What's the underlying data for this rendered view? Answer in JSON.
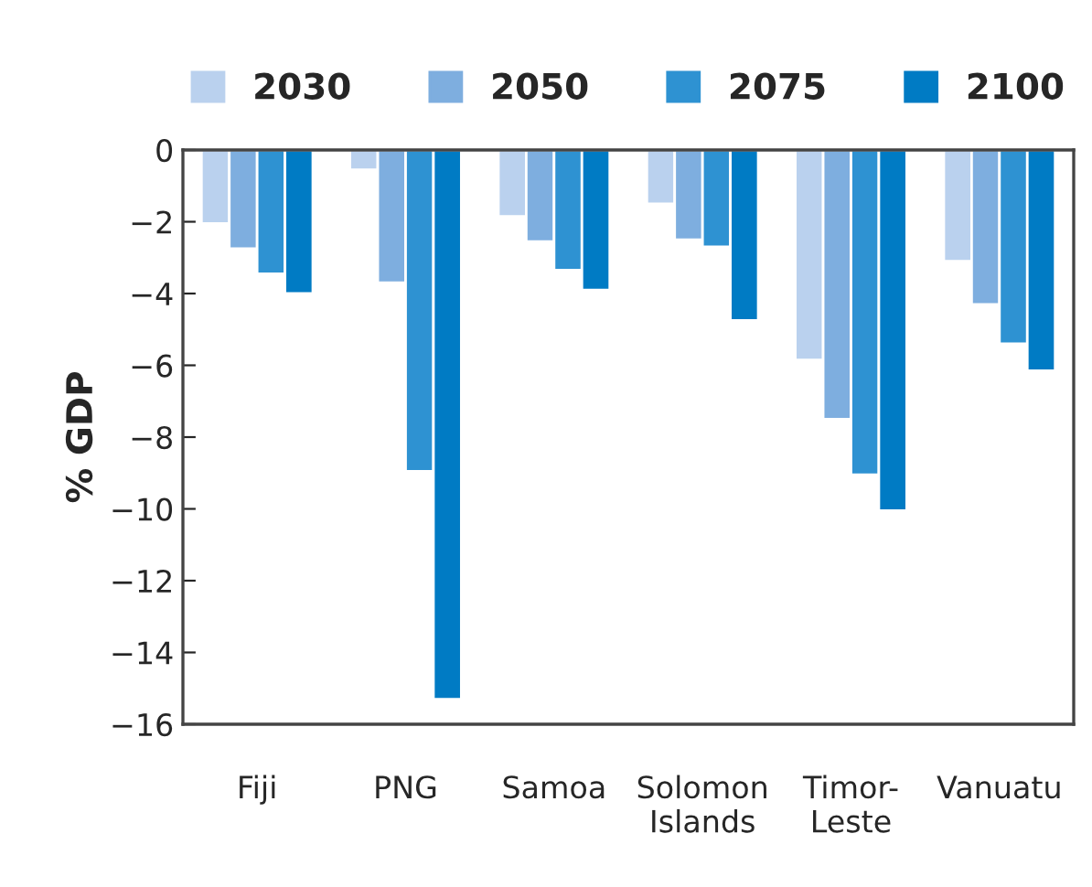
{
  "chart_data": {
    "type": "bar",
    "ylabel": "% GDP",
    "categories": [
      "Fiji",
      "PNG",
      "Samoa",
      "Solomon\nIslands",
      "Timor-\nLeste",
      "Vanuatu"
    ],
    "series": [
      {
        "name": "2030",
        "color": "#bad1ee",
        "values": [
          -2.05,
          -0.55,
          -1.85,
          -1.5,
          -5.85,
          -3.1
        ]
      },
      {
        "name": "2050",
        "color": "#7eaedf",
        "values": [
          -2.75,
          -3.7,
          -2.55,
          -2.5,
          -7.5,
          -4.3
        ]
      },
      {
        "name": "2075",
        "color": "#2e92d2",
        "values": [
          -3.45,
          -8.95,
          -3.35,
          -2.7,
          -9.05,
          -5.4
        ]
      },
      {
        "name": "2100",
        "color": "#007bc4",
        "values": [
          -4.0,
          -15.3,
          -3.9,
          -4.75,
          -10.05,
          -6.15
        ]
      }
    ],
    "ylim": [
      -16,
      0
    ],
    "yticks": [
      -16,
      -14,
      -12,
      -10,
      -8,
      -6,
      -4,
      -2,
      0
    ],
    "legend": "top",
    "grid": false
  }
}
